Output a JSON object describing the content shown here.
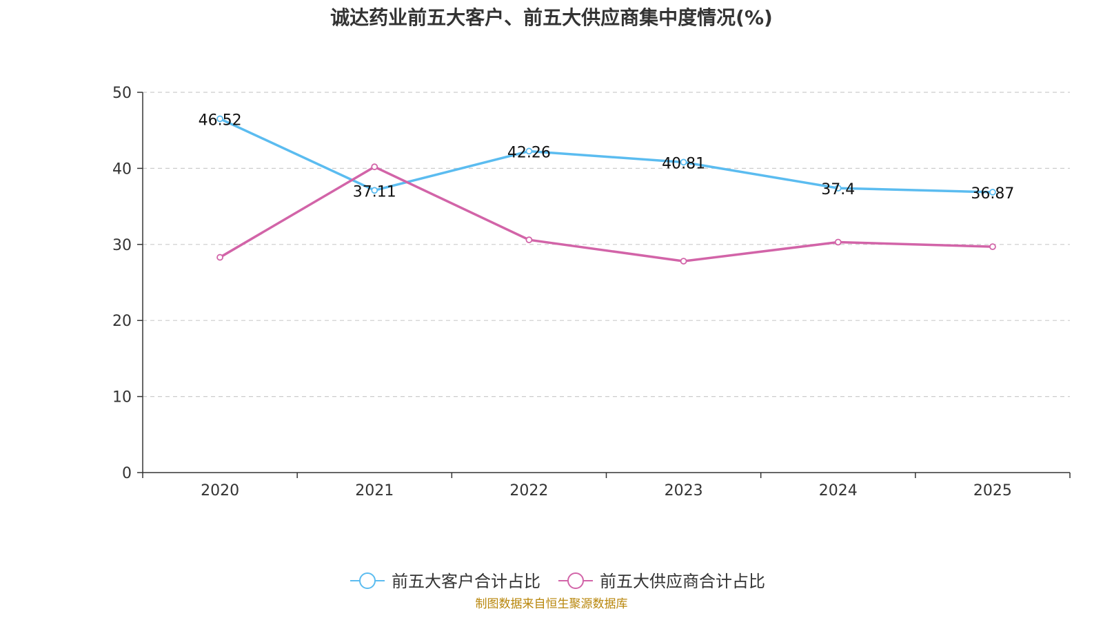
{
  "chart_data": {
    "type": "line",
    "title": "诚达药业前五大客户、前五大供应商集中度情况(%)",
    "categories": [
      "2020",
      "2021",
      "2022",
      "2023",
      "2024",
      "2025"
    ],
    "ylim": [
      0,
      50
    ],
    "yticks": [
      0,
      10,
      20,
      30,
      40,
      50
    ],
    "grid": "horizontal-dashed",
    "legend_position": "bottom-center",
    "series": [
      {
        "name": "前五大客户合计占比",
        "color": "#5bbcf0",
        "values": [
          46.52,
          37.11,
          42.26,
          40.81,
          37.4,
          36.87
        ],
        "labels": [
          "46.52",
          "37.11",
          "42.26",
          "40.81",
          "37.4",
          "36.87"
        ]
      },
      {
        "name": "前五大供应商合计占比",
        "color": "#d264a8",
        "values": [
          28.3,
          40.2,
          30.6,
          27.8,
          30.3,
          29.7
        ]
      }
    ]
  },
  "source": "制图数据来自恒生聚源数据库"
}
